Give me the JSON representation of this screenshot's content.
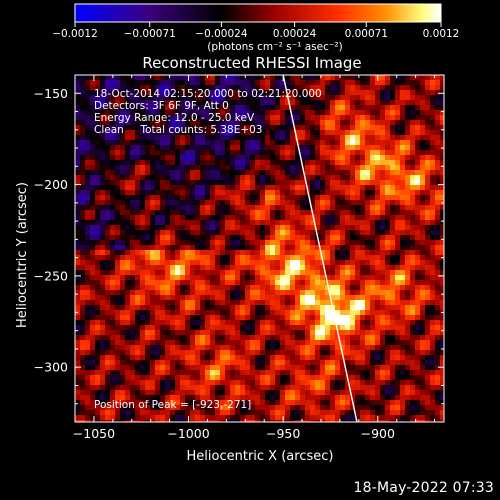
{
  "chart_data": {
    "type": "heatmap",
    "title": "Reconstructed RHESSI Image",
    "xlabel": "Heliocentric X (arcsec)",
    "ylabel": "Heliocentric Y (arcsec)",
    "xlim": [
      -1060,
      -865
    ],
    "ylim": [
      -330,
      -140
    ],
    "x_ticks": [
      -1050,
      -1000,
      -950,
      -900
    ],
    "y_ticks": [
      -150,
      -200,
      -250,
      -300
    ],
    "x_tick_labels": [
      "−1050",
      "−1000",
      "−950",
      "−900"
    ],
    "y_tick_labels": [
      "−150",
      "−200",
      "−250",
      "−300"
    ],
    "colorbar": {
      "min": -0.0012,
      "max": 0.0012,
      "tick_values": [
        -0.0012,
        -0.00071,
        -0.00024,
        0.00024,
        0.00071,
        0.0012
      ],
      "tick_labels": [
        "−0.0012",
        "−0.00071",
        "−0.00024",
        "0.00024",
        "0.00071",
        "0.0012"
      ],
      "unit_label": "(photons cm⁻² s⁻¹ asec⁻²)",
      "colormap": [
        "#0000ff",
        "#3a0080",
        "#000000",
        "#a00000",
        "#ff3000",
        "#ff9000",
        "#ffff80",
        "#ffffff"
      ]
    },
    "annotations": [
      "18-Oct-2014 02:15:20.000 to 02:21:20.000",
      "Detectors: 3F 6F 9F, Att 0",
      "Energy Range: 12.0 - 25.0 keV",
      "Clean     Total counts: 5.38E+03"
    ],
    "peak_label": "Position of Peak = [-923,-271]",
    "peak": {
      "x": -923,
      "y": -271
    },
    "limb": [
      {
        "x": -950,
        "y": -140
      },
      {
        "x": -911,
        "y": -330
      }
    ],
    "grid": false,
    "legend": "none"
  },
  "timestamp": "18-May-2022 07:33"
}
